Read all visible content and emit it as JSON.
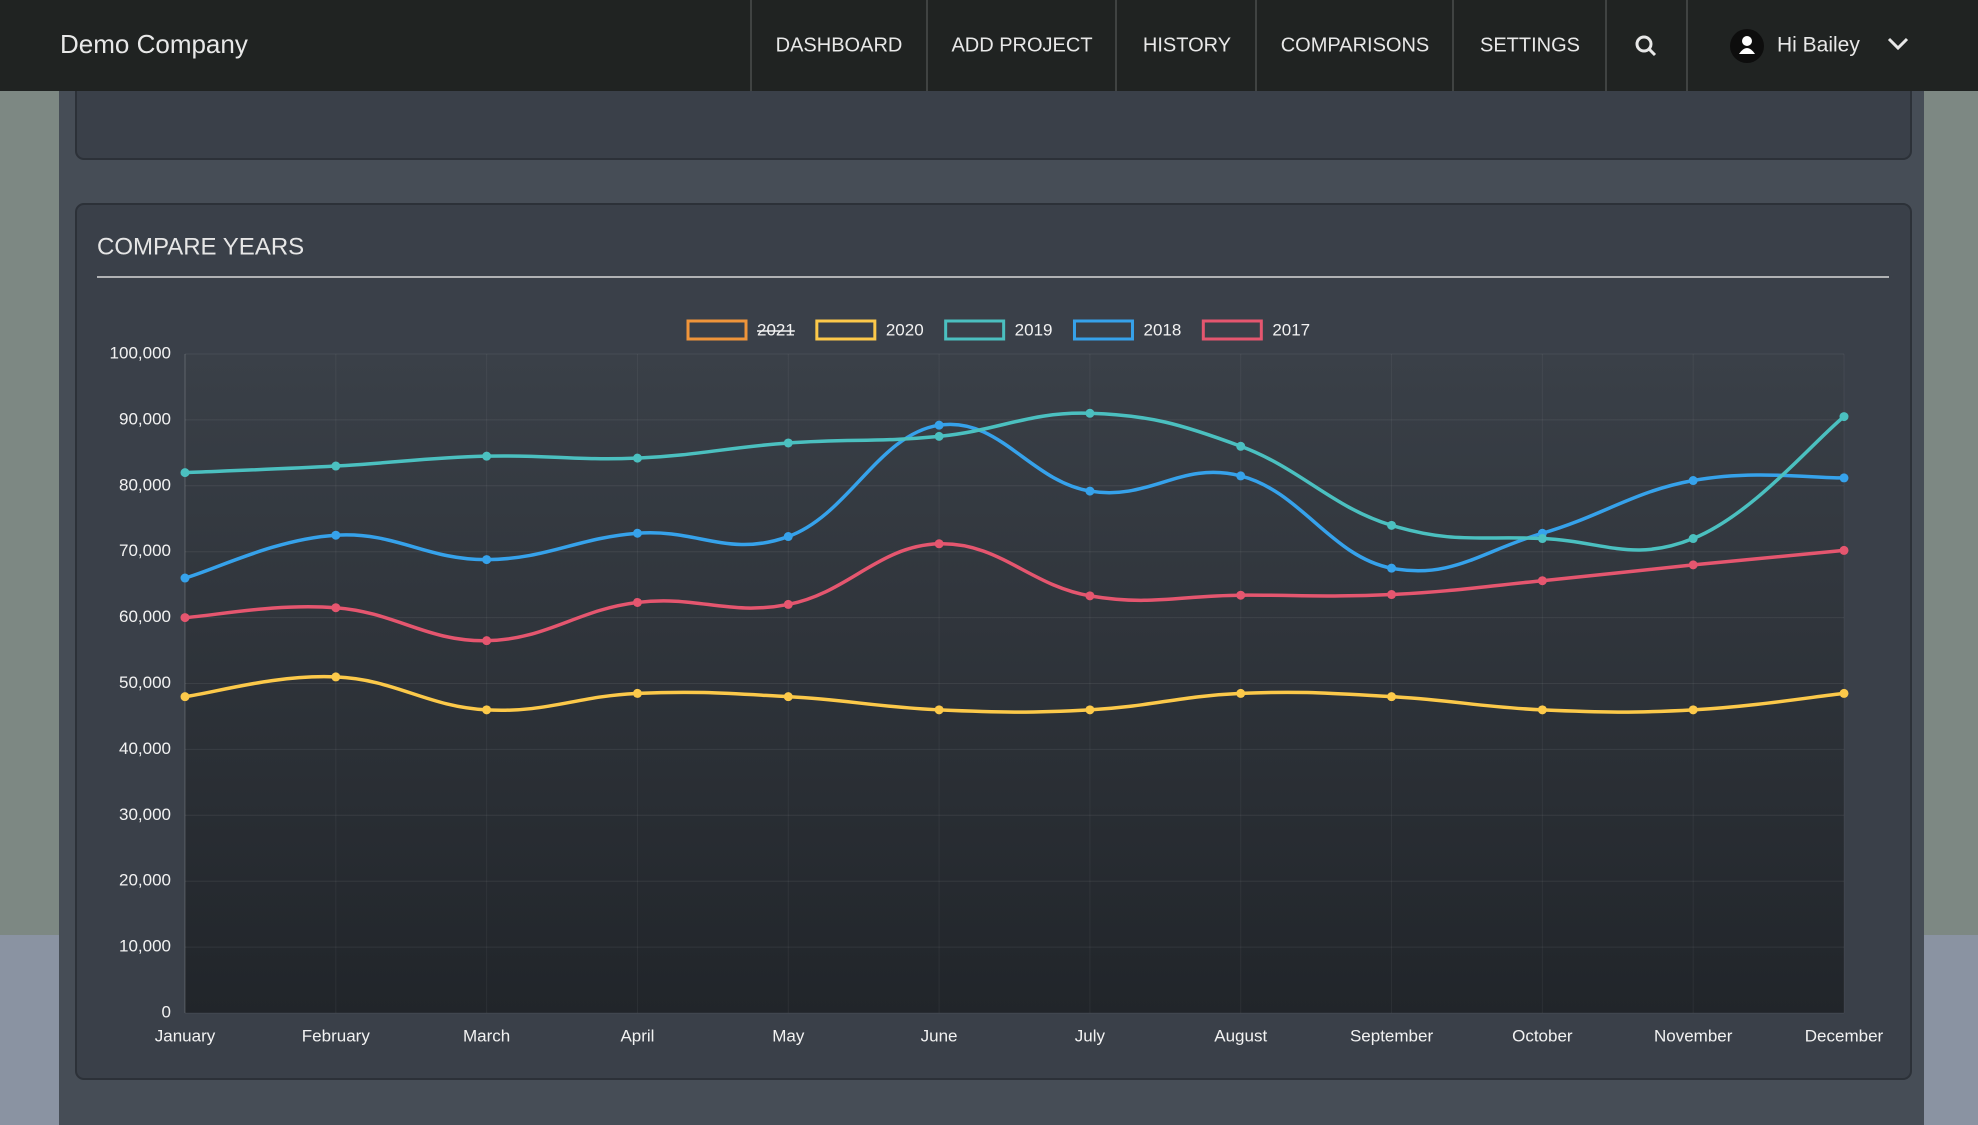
{
  "nav": {
    "brand": "Demo Company",
    "items": [
      "DASHBOARD",
      "ADD PROJECT",
      "HISTORY",
      "COMPARISONS",
      "SETTINGS"
    ],
    "user": "Hi Bailey"
  },
  "chart_data": {
    "type": "line",
    "title": "COMPARE YEARS",
    "categories": [
      "January",
      "February",
      "March",
      "April",
      "May",
      "June",
      "July",
      "August",
      "September",
      "October",
      "November",
      "December"
    ],
    "series": [
      {
        "name": "2021",
        "color": "#f0953a",
        "hidden": true,
        "values": [
          null,
          null,
          null,
          null,
          null,
          null,
          null,
          null,
          null,
          null,
          null,
          null
        ]
      },
      {
        "name": "2020",
        "color": "#fcc94a",
        "values": [
          48000,
          51000,
          46000,
          48500,
          48000,
          46000,
          46000,
          48500,
          48000,
          46000,
          46000,
          48500
        ]
      },
      {
        "name": "2019",
        "color": "#4bc0c0",
        "values": [
          82000,
          83000,
          84500,
          84200,
          86500,
          87500,
          91000,
          86000,
          74000,
          72000,
          72000,
          90500
        ]
      },
      {
        "name": "2018",
        "color": "#36a2eb",
        "values": [
          66000,
          72500,
          68800,
          72800,
          72300,
          89200,
          79200,
          81500,
          67500,
          72800,
          80800,
          81200
        ]
      },
      {
        "name": "2017",
        "color": "#e5566f",
        "values": [
          60000,
          61500,
          56500,
          62300,
          62000,
          71200,
          63300,
          63400,
          63500,
          65600,
          68000,
          70200
        ]
      }
    ],
    "ylim": [
      0,
      100000
    ],
    "yticks": [
      0,
      {
        "value": 10000,
        "label": "10,000"
      },
      {
        "value": 20000,
        "label": "20,000"
      },
      {
        "value": 30000,
        "label": "30,000"
      },
      {
        "value": 40000,
        "label": "40,000"
      },
      {
        "value": 50000,
        "label": "50,000"
      },
      {
        "value": 60000,
        "label": "60,000"
      },
      {
        "value": 70000,
        "label": "70,000"
      },
      {
        "value": 80000,
        "label": "80,000"
      },
      {
        "value": 90000,
        "label": "90,000"
      },
      {
        "value": 100000,
        "label": "100,000"
      }
    ],
    "grid": true,
    "legend": "top"
  }
}
